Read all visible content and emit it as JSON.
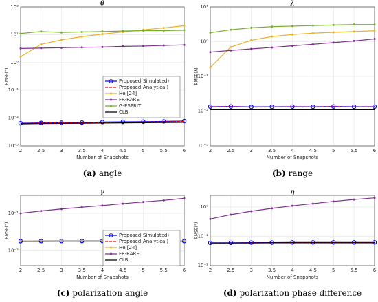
{
  "chart_data": [
    {
      "type": "line",
      "title": "θ",
      "ylabel": "RMSE(°)",
      "xlabel": "Number of Snapshots",
      "panel": "(a)",
      "caption": "angle",
      "log_y": true,
      "grid": true,
      "legend": "east",
      "x": [
        2,
        2.5,
        3,
        3.5,
        4,
        4.5,
        5,
        5.5,
        6
      ],
      "xlim": [
        2,
        6
      ],
      "xticks": [
        2,
        2.5,
        3,
        3.5,
        4,
        4.5,
        5,
        5.5,
        6
      ],
      "ylim": [
        0.001,
        100
      ],
      "yticks": [
        {
          "value": 0.001,
          "label": "10⁻³"
        },
        {
          "value": 0.01,
          "label": "10⁻²"
        },
        {
          "value": 0.1,
          "label": "10⁻¹"
        },
        {
          "value": 1,
          "label": "10⁰"
        },
        {
          "value": 10,
          "label": "10¹"
        },
        {
          "value": 100,
          "label": "10²"
        }
      ],
      "series": [
        {
          "name": "Proposed(Simulated)",
          "color": "#0000ff",
          "marker": "circle",
          "dashed": false,
          "values": [
            0.0065,
            0.0067,
            0.0068,
            0.0069,
            0.0072,
            0.0073,
            0.0074,
            0.0076,
            0.0078
          ]
        },
        {
          "name": "Proposed(Analytical)",
          "color": "#ff0000",
          "marker": "none",
          "dashed": true,
          "values": [
            0.0064,
            0.0066,
            0.0067,
            0.0068,
            0.007,
            0.0071,
            0.0072,
            0.0073,
            0.0075
          ]
        },
        {
          "name": "He [24]",
          "color": "#edb120",
          "marker": "dot",
          "dashed": false,
          "values": [
            1.6,
            4.5,
            6.5,
            8.5,
            10.5,
            12.5,
            15,
            17.5,
            21
          ]
        },
        {
          "name": "FR-RARE",
          "color": "#7e2f8e",
          "marker": "dot",
          "dashed": false,
          "values": [
            3.2,
            3.3,
            3.4,
            3.5,
            3.6,
            3.8,
            3.9,
            4.1,
            4.3
          ]
        },
        {
          "name": "G-ESPRIT",
          "color": "#77ac30",
          "marker": "dot",
          "dashed": false,
          "values": [
            11,
            13,
            12,
            12.5,
            13,
            13.5,
            14,
            14,
            14.5
          ]
        },
        {
          "name": "CLB",
          "color": "#000000",
          "marker": "none",
          "dashed": false,
          "values": [
            0.0062,
            0.0063,
            0.0064,
            0.0065,
            0.0066,
            0.0067,
            0.0068,
            0.0069,
            0.007
          ]
        }
      ]
    },
    {
      "type": "line",
      "title": "λ",
      "ylabel": "RMSE(λ)",
      "xlabel": "Number of Snapshots",
      "panel": "(b)",
      "caption": "range",
      "log_y": true,
      "grid": true,
      "x": [
        2,
        2.5,
        3,
        3.5,
        4,
        4.5,
        5,
        5.5,
        6
      ],
      "xlim": [
        2,
        6
      ],
      "xticks": [
        2,
        2.5,
        3,
        3.5,
        4,
        4.5,
        5,
        5.5,
        6
      ],
      "ylim": [
        0.001,
        10
      ],
      "yticks": [
        {
          "value": 0.001,
          "label": "10⁻³"
        },
        {
          "value": 0.01,
          "label": "10⁻²"
        },
        {
          "value": 0.1,
          "label": "10⁻¹"
        },
        {
          "value": 1,
          "label": "10⁰"
        },
        {
          "value": 10,
          "label": "10¹"
        }
      ],
      "series": [
        {
          "color": "#0000ff",
          "marker": "circle",
          "dashed": false,
          "values": [
            0.0135,
            0.0136,
            0.0133,
            0.0134,
            0.0135,
            0.0134,
            0.0136,
            0.0134,
            0.0135
          ]
        },
        {
          "color": "#ff0000",
          "marker": "none",
          "dashed": true,
          "values": [
            0.0133,
            0.0134,
            0.0131,
            0.0132,
            0.0133,
            0.0132,
            0.0134,
            0.0132,
            0.0133
          ]
        },
        {
          "color": "#edb120",
          "marker": "dot",
          "dashed": false,
          "values": [
            0.18,
            0.7,
            1.1,
            1.4,
            1.6,
            1.75,
            1.85,
            1.95,
            2.05
          ]
        },
        {
          "color": "#7e2f8e",
          "marker": "dot",
          "dashed": false,
          "values": [
            0.5,
            0.56,
            0.62,
            0.68,
            0.76,
            0.84,
            0.94,
            1.05,
            1.2
          ]
        },
        {
          "color": "#77ac30",
          "marker": "dot",
          "dashed": false,
          "values": [
            1.8,
            2.2,
            2.5,
            2.7,
            2.8,
            2.9,
            3.0,
            3.1,
            3.1
          ]
        },
        {
          "color": "#000000",
          "marker": "none",
          "dashed": false,
          "values": [
            0.011,
            0.011,
            0.011,
            0.011,
            0.011,
            0.011,
            0.011,
            0.011,
            0.011
          ]
        }
      ]
    },
    {
      "type": "line",
      "title": "γ",
      "ylabel": "RMSE(°)",
      "xlabel": "Number of Snapshots",
      "panel": "(c)",
      "caption": "polarization angle",
      "log_y": true,
      "grid": true,
      "legend": "east",
      "x": [
        2,
        2.5,
        3,
        3.5,
        4,
        4.5,
        5,
        5.5,
        6
      ],
      "xlim": [
        2,
        6
      ],
      "xticks": [
        2,
        2.5,
        3,
        3.5,
        4,
        4.5,
        5,
        5.5,
        6
      ],
      "ylim": [
        0.004,
        0.3
      ],
      "yticks": [
        {
          "value": 0.01,
          "label": "10⁻²"
        },
        {
          "value": 0.1,
          "label": "10⁻¹"
        }
      ],
      "series": [
        {
          "name": "Proposed(Simulated)",
          "color": "#0000ff",
          "marker": "circle",
          "dashed": false,
          "values": [
            0.018,
            0.0181,
            0.0182,
            0.0182,
            0.0183,
            0.0182,
            0.0182,
            0.0181,
            0.0181
          ]
        },
        {
          "name": "Proposed(Analytical)",
          "color": "#ff0000",
          "marker": "none",
          "dashed": true,
          "values": [
            0.0179,
            0.018,
            0.0181,
            0.0181,
            0.0182,
            0.0181,
            0.0181,
            0.018,
            0.018
          ]
        },
        {
          "name": "He [24]",
          "color": "#edb120",
          "marker": "dot",
          "dashed": false,
          "values": [
            0.0182,
            0.0185,
            0.0186,
            0.0186,
            0.0187,
            0.0185,
            0.0184,
            0.0183,
            0.0183
          ]
        },
        {
          "name": "FR-RARE",
          "color": "#7e2f8e",
          "marker": "dot",
          "dashed": false,
          "values": [
            0.1,
            0.115,
            0.13,
            0.145,
            0.16,
            0.18,
            0.2,
            0.22,
            0.25
          ]
        },
        {
          "name": "CLB",
          "color": "#000000",
          "marker": "none",
          "dashed": false,
          "values": [
            0.0178,
            0.0178,
            0.0179,
            0.0179,
            0.0179,
            0.0179,
            0.0179,
            0.0179,
            0.0179
          ]
        }
      ]
    },
    {
      "type": "line",
      "title": "η",
      "ylabel": "RMSE(°)",
      "xlabel": "Number of Snapshots",
      "panel": "(d)",
      "caption": "polarization phase difference",
      "log_y": true,
      "grid": true,
      "x": [
        2,
        2.5,
        3,
        3.5,
        4,
        4.5,
        5,
        5.5,
        6
      ],
      "xlim": [
        2,
        6
      ],
      "xticks": [
        2,
        2.5,
        3,
        3.5,
        4,
        4.5,
        5,
        5.5,
        6
      ],
      "ylim": [
        0.01,
        2.5
      ],
      "yticks": [
        {
          "value": 0.01,
          "label": "10⁻²"
        },
        {
          "value": 0.1,
          "label": "10⁻¹"
        },
        {
          "value": 1,
          "label": "10⁰"
        }
      ],
      "series": [
        {
          "color": "#0000ff",
          "marker": "circle",
          "dashed": false,
          "values": [
            0.06,
            0.06,
            0.061,
            0.061,
            0.062,
            0.062,
            0.062,
            0.062,
            0.062
          ]
        },
        {
          "color": "#ff0000",
          "marker": "none",
          "dashed": true,
          "values": [
            0.059,
            0.059,
            0.06,
            0.06,
            0.061,
            0.061,
            0.061,
            0.061,
            0.061
          ]
        },
        {
          "color": "#7e2f8e",
          "marker": "dot",
          "dashed": false,
          "values": [
            0.39,
            0.55,
            0.72,
            0.9,
            1.1,
            1.3,
            1.55,
            1.8,
            2.05
          ]
        },
        {
          "color": "#000000",
          "marker": "none",
          "dashed": false,
          "values": [
            0.059,
            0.059,
            0.059,
            0.06,
            0.06,
            0.06,
            0.06,
            0.06,
            0.06
          ]
        }
      ]
    }
  ]
}
